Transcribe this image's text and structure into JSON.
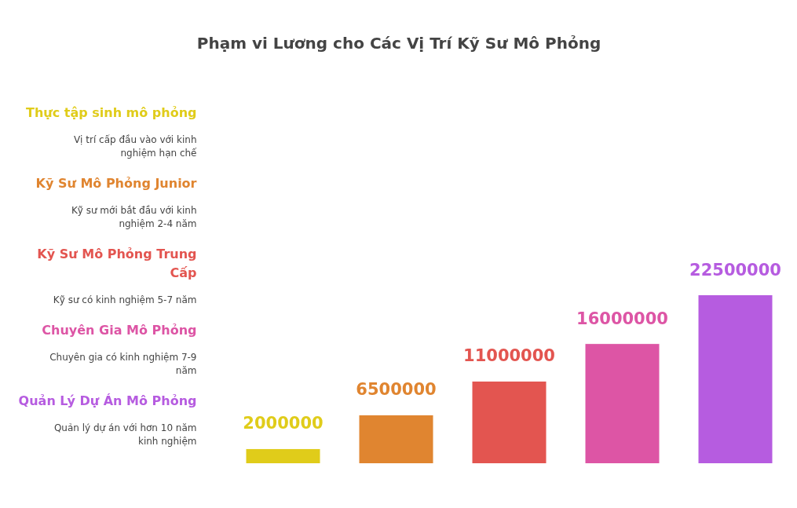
{
  "chart_data": {
    "type": "bar",
    "title": "Phạm vi Lương cho Các Vị Trí Kỹ Sư Mô Phỏng",
    "categories": [
      null,
      null,
      null,
      null,
      null
    ],
    "values": [
      2000000,
      6500000,
      11000000,
      16000000,
      22500000
    ],
    "colors": [
      "#e0cc1a",
      "#e08530",
      "#e35550",
      "#dd55a5",
      "#b65ce0"
    ],
    "data_labels": true,
    "annotations": [
      "Thực tập sinh mô phỏng",
      "Vị trí cấp đầu vào với kinh nghiệm hạn chế",
      "Kỹ Sư Mô Phỏng Junior",
      "Kỹ sư mới bắt đầu với kinh nghiệm 2-4 năm",
      "Kỹ Sư Mô Phỏng Trung Cấp",
      "Kỹ sư có kinh nghiệm 5-7 năm",
      "Chuyên Gia Mô Phỏng",
      "Chuyên gia có kinh nghiệm 7-9 năm",
      "Quản Lý Dự Án Mô Phỏng",
      "Quản lý dự án với hơn 10 năm kinh nghiệm"
    ]
  }
}
